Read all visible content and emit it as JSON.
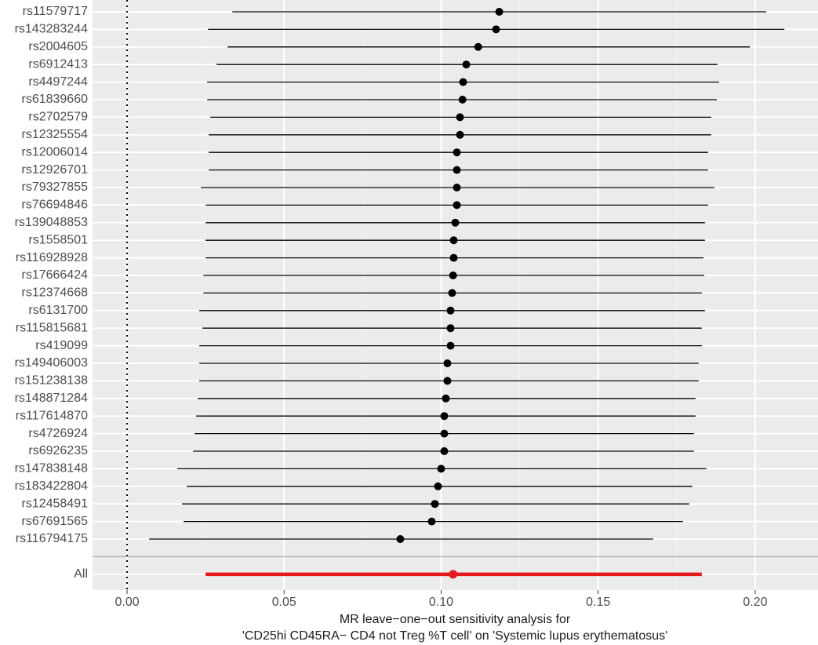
{
  "chart_data": {
    "type": "forest",
    "categories": [
      "rs11579717",
      "rs143283244",
      "rs2004605",
      "rs6912413",
      "rs4497244",
      "rs61839660",
      "rs2702579",
      "rs12325554",
      "rs12006014",
      "rs12926701",
      "rs79327855",
      "rs76694846",
      "rs139048853",
      "rs1558501",
      "rs116928928",
      "rs17666424",
      "rs12374668",
      "rs6131700",
      "rs115815681",
      "rs419099",
      "rs149406003",
      "rs151238138",
      "rs148871284",
      "rs117614870",
      "rs4726924",
      "rs6926235",
      "rs147838148",
      "rs183422804",
      "rs12458491",
      "rs67691565",
      "rs116794175"
    ],
    "values": [
      0.1185,
      0.1175,
      0.1118,
      0.108,
      0.107,
      0.1068,
      0.106,
      0.106,
      0.105,
      0.105,
      0.105,
      0.105,
      0.1045,
      0.104,
      0.104,
      0.1038,
      0.1035,
      0.103,
      0.103,
      0.103,
      0.102,
      0.102,
      0.1015,
      0.101,
      0.101,
      0.101,
      0.1,
      0.099,
      0.098,
      0.097,
      0.087
    ],
    "lower": [
      0.0335,
      0.0258,
      0.032,
      0.0285,
      0.0255,
      0.0255,
      0.0265,
      0.026,
      0.026,
      0.026,
      0.0235,
      0.025,
      0.025,
      0.025,
      0.025,
      0.0243,
      0.0243,
      0.023,
      0.024,
      0.023,
      0.023,
      0.023,
      0.0225,
      0.022,
      0.0215,
      0.021,
      0.016,
      0.019,
      0.0175,
      0.018,
      0.007
    ],
    "upper": [
      0.2035,
      0.2093,
      0.1983,
      0.188,
      0.1885,
      0.1878,
      0.186,
      0.186,
      0.185,
      0.185,
      0.187,
      0.185,
      0.184,
      0.184,
      0.1835,
      0.1838,
      0.183,
      0.184,
      0.183,
      0.183,
      0.182,
      0.182,
      0.181,
      0.181,
      0.1805,
      0.1805,
      0.1845,
      0.18,
      0.179,
      0.177,
      0.1675
    ],
    "color": "#000000",
    "summary": {
      "category": "All",
      "value": 0.1038,
      "lower": 0.025,
      "upper": 0.183,
      "color": "#e41a1c"
    },
    "reference_line": 0,
    "xlim": [
      -0.011,
      0.22
    ],
    "xticks": [
      {
        "value": 0,
        "label": "0.00"
      },
      {
        "value": 0.05,
        "label": "0.05"
      },
      {
        "value": 0.1,
        "label": "0.10"
      },
      {
        "value": 0.15,
        "label": "0.15"
      },
      {
        "value": 0.2,
        "label": "0.20"
      }
    ],
    "x_label": [
      "MR leave−one−out sensitivity analysis for",
      "'CD25hi CD45RA− CD4 not Treg %T cell' on 'Systemic lupus erythematosus'"
    ],
    "grid": true
  }
}
